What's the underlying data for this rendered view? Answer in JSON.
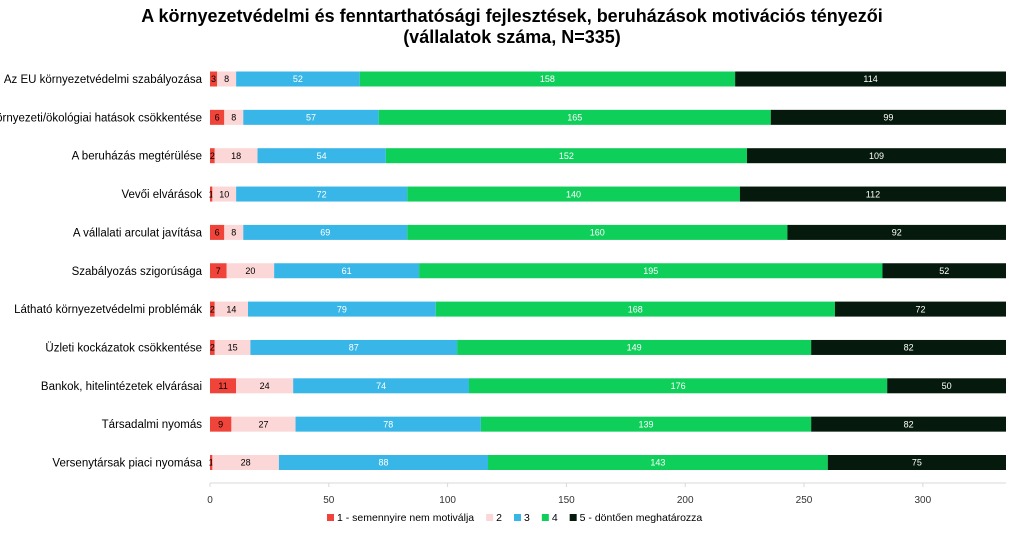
{
  "chart_data": {
    "type": "bar",
    "orientation": "horizontal",
    "stacked": true,
    "title_lines": [
      "A környezetvédelmi és fenntarthatósági fejlesztések, beruházások motivációs tényezői",
      "(vállalatok száma, N=335)"
    ],
    "xlim": [
      0,
      335
    ],
    "xticks": [
      0,
      50,
      100,
      150,
      200,
      250,
      300
    ],
    "grid": false,
    "legend_position": "bottom",
    "categories": [
      "Az EU környezetvédelmi szabályozása",
      "Környezeti/ökológiai hatások csökkentése",
      "A beruházás megtérülése",
      "Vevői elvárások",
      "A vállalati arculat javítása",
      "Szabályozás szigorúsága",
      "Látható környezetvédelmi problémák",
      "Üzleti kockázatok csökkentése",
      "Bankok, hitelintézetek elvárásai",
      "Társadalmi nyomás",
      "Versenytársak piaci nyomása"
    ],
    "series": [
      {
        "name": "1 - semennyire nem motiválja",
        "color": "#f0443a",
        "label_color": "#000000",
        "values": [
          3,
          6,
          2,
          1,
          6,
          7,
          2,
          2,
          11,
          9,
          1
        ]
      },
      {
        "name": "2",
        "color": "#fbd7d7",
        "label_color": "#000000",
        "values": [
          8,
          8,
          18,
          10,
          8,
          20,
          14,
          15,
          24,
          27,
          28
        ]
      },
      {
        "name": "3",
        "color": "#38b6e7",
        "label_color": "#ffffff",
        "values": [
          52,
          57,
          54,
          72,
          69,
          61,
          79,
          87,
          74,
          78,
          88
        ]
      },
      {
        "name": "4",
        "color": "#0fcf5b",
        "label_color": "#ffffff",
        "values": [
          158,
          165,
          152,
          140,
          160,
          195,
          168,
          149,
          176,
          139,
          143
        ]
      },
      {
        "name": "5 - döntően meghatározza",
        "color": "#051a0c",
        "label_color": "#ffffff",
        "values": [
          114,
          99,
          109,
          112,
          92,
          52,
          72,
          82,
          50,
          82,
          75
        ]
      }
    ]
  }
}
